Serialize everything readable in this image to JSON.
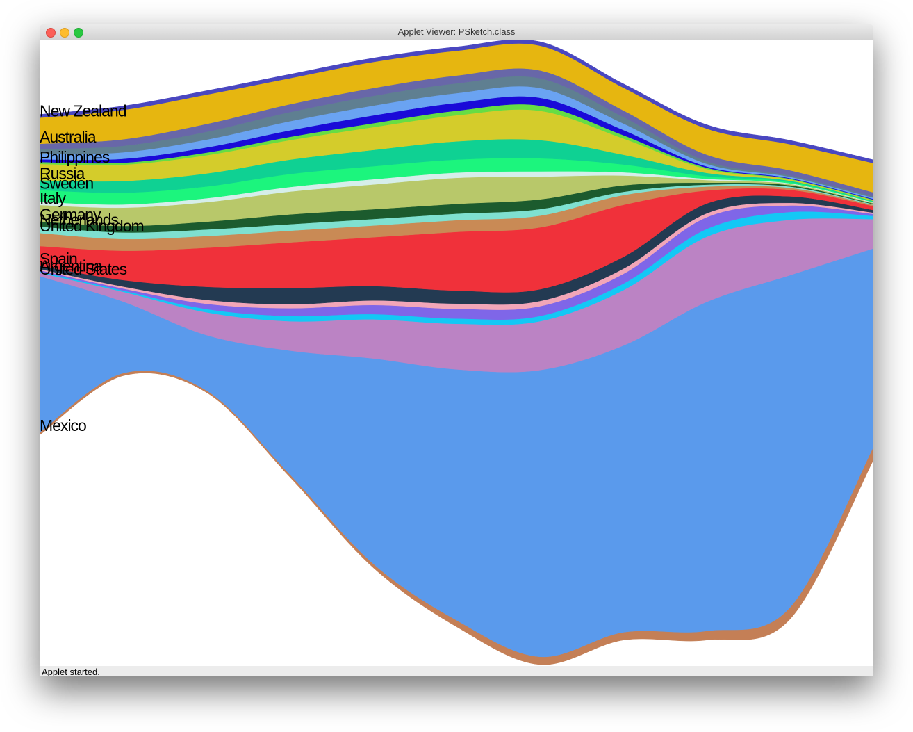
{
  "window": {
    "title": "Applet Viewer: PSketch.class",
    "status": "Applet started."
  },
  "chart_data": {
    "type": "streamgraph",
    "series": [
      {
        "name": "Mexico",
        "color": "#c47f56",
        "values": [
          4,
          4,
          3,
          4,
          6,
          10,
          12,
          12,
          14,
          18,
          20
        ]
      },
      {
        "name": "United States",
        "color": "#5a9aec",
        "values": [
          240,
          110,
          85,
          190,
          315,
          385,
          440,
          440,
          505,
          510,
          305
        ]
      },
      {
        "name": "Argentina",
        "color": "#bb83c4",
        "values": [
          5,
          15,
          35,
          45,
          60,
          70,
          75,
          85,
          100,
          85,
          45
        ]
      },
      {
        "color": "#13c8f5",
        "values": [
          2,
          2,
          5,
          8,
          8,
          8,
          8,
          10,
          12,
          12,
          5
        ]
      },
      {
        "color": "#7f66e8",
        "values": [
          2,
          3,
          8,
          12,
          14,
          15,
          15,
          15,
          18,
          10,
          3
        ]
      },
      {
        "color": "#f2a6b8",
        "values": [
          2,
          3,
          6,
          6,
          7,
          8,
          8,
          8,
          6,
          4,
          2
        ]
      },
      {
        "name": "Spain",
        "color": "#233a52",
        "values": [
          5,
          10,
          20,
          25,
          22,
          20,
          18,
          18,
          15,
          10,
          4
        ]
      },
      {
        "color": "#f0313a",
        "values": [
          30,
          45,
          60,
          70,
          75,
          90,
          95,
          80,
          20,
          10,
          6
        ]
      },
      {
        "name": "United Kingdom",
        "color": "#c98a55",
        "values": [
          20,
          18,
          18,
          18,
          18,
          18,
          18,
          15,
          6,
          3,
          2
        ]
      },
      {
        "name": "Netherlands",
        "color": "#7fe0d0",
        "values": [
          10,
          10,
          10,
          10,
          10,
          10,
          10,
          5,
          3,
          2,
          1
        ]
      },
      {
        "name": "Germany",
        "color": "#1c5b2e",
        "values": [
          8,
          10,
          12,
          15,
          15,
          15,
          15,
          10,
          3,
          2,
          1
        ]
      },
      {
        "name": "Italy",
        "color": "#b8c86a",
        "values": [
          25,
          28,
          30,
          35,
          38,
          40,
          35,
          15,
          4,
          2,
          1
        ]
      },
      {
        "color": "#d6eeea",
        "values": [
          5,
          5,
          6,
          7,
          8,
          8,
          8,
          5,
          2,
          1,
          1
        ]
      },
      {
        "name": "Sweden",
        "color": "#1cf57d",
        "values": [
          18,
          18,
          18,
          20,
          20,
          20,
          20,
          12,
          4,
          2,
          1
        ]
      },
      {
        "name": "Russia",
        "color": "#0fd193",
        "values": [
          15,
          18,
          20,
          22,
          25,
          28,
          28,
          15,
          5,
          2,
          1
        ]
      },
      {
        "name": "Philippines",
        "color": "#d4cc2b",
        "values": [
          25,
          25,
          28,
          30,
          35,
          40,
          45,
          25,
          6,
          2,
          1
        ]
      },
      {
        "color": "#66dd44",
        "values": [
          3,
          3,
          4,
          5,
          6,
          7,
          8,
          5,
          2,
          1,
          1
        ]
      },
      {
        "color": "#1a0ad8",
        "values": [
          4,
          6,
          8,
          10,
          12,
          12,
          12,
          8,
          2,
          1,
          1
        ]
      },
      {
        "color": "#6aa3f2",
        "values": [
          8,
          10,
          12,
          14,
          15,
          15,
          15,
          10,
          4,
          2,
          2
        ]
      },
      {
        "color": "#5f7f91",
        "values": [
          8,
          10,
          12,
          14,
          15,
          15,
          15,
          10,
          4,
          2,
          2
        ]
      },
      {
        "name": "Australia",
        "color": "#6867a8",
        "values": [
          8,
          10,
          12,
          12,
          12,
          12,
          12,
          10,
          10,
          8,
          6
        ]
      },
      {
        "name": "New Zealand",
        "color": "#e6b610",
        "values": [
          40,
          45,
          45,
          40,
          40,
          38,
          38,
          35,
          40,
          40,
          45
        ]
      },
      {
        "color": "#4a47c0",
        "values": [
          5,
          6,
          6,
          6,
          6,
          6,
          6,
          6,
          6,
          6,
          5
        ]
      }
    ]
  }
}
